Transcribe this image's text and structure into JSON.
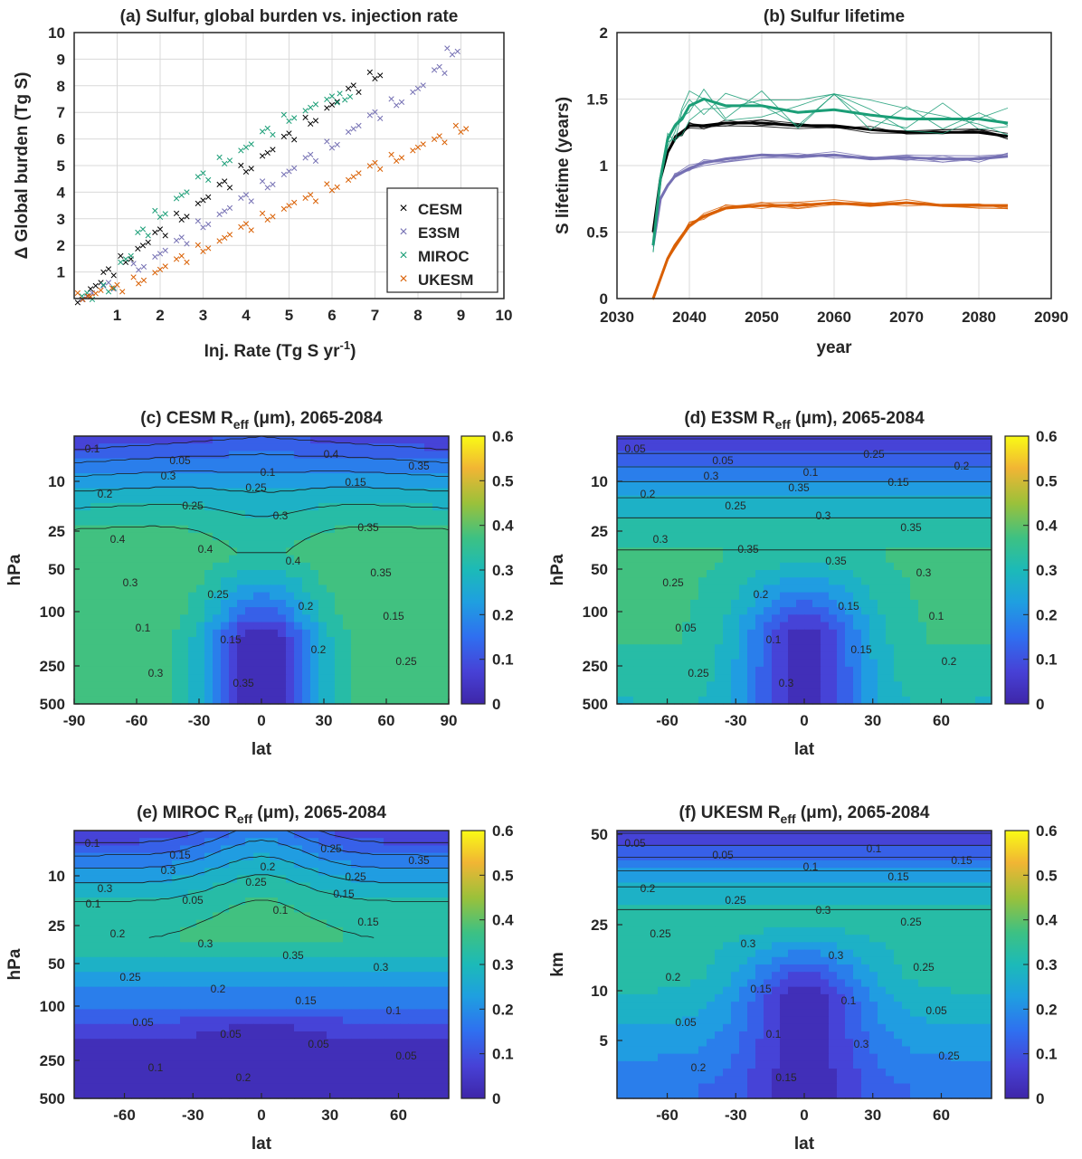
{
  "chart_data": [
    {
      "id": "a",
      "type": "scatter",
      "title": "(a) Sulfur, global burden vs. injection rate",
      "xlabel": "Inj. Rate (Tg S yr",
      "xlabel_sup": "-1",
      "xlabel_end": ")",
      "ylabel": "Δ Global burden (Tg S)",
      "xlim": [
        0,
        10
      ],
      "ylim": [
        0,
        10
      ],
      "xticks": [
        1,
        2,
        3,
        4,
        5,
        6,
        7,
        8,
        9,
        10
      ],
      "yticks": [
        1,
        2,
        3,
        4,
        5,
        6,
        7,
        8,
        9,
        10
      ],
      "grid": true,
      "legend_position": "bottom-right",
      "marker": "×",
      "series": [
        {
          "name": "CESM",
          "color": "#000000",
          "x": [
            0.2,
            0.5,
            0.8,
            1.2,
            1.6,
            2.0,
            2.5,
            3.0,
            3.5,
            4.0,
            4.5,
            5.0,
            5.5,
            6.0,
            6.5,
            7.0
          ],
          "y": [
            0.1,
            0.5,
            1.0,
            1.5,
            2.0,
            2.5,
            3.1,
            3.7,
            4.3,
            4.9,
            5.5,
            6.1,
            6.7,
            7.3,
            7.9,
            8.4
          ]
        },
        {
          "name": "E3SM",
          "color": "#7570b3",
          "x": [
            0.3,
            0.8,
            1.5,
            2.0,
            2.5,
            3.0,
            3.5,
            4.0,
            4.5,
            5.0,
            5.5,
            6.0,
            6.5,
            7.0,
            7.5,
            8.0,
            8.5,
            8.8
          ],
          "y": [
            0.1,
            0.5,
            1.2,
            1.7,
            2.2,
            2.8,
            3.3,
            3.8,
            4.3,
            4.8,
            5.3,
            5.8,
            6.4,
            6.9,
            7.4,
            7.9,
            8.6,
            9.3
          ]
        },
        {
          "name": "MIROC",
          "color": "#1b9e77",
          "x": [
            0.3,
            0.8,
            1.2,
            1.6,
            2.0,
            2.5,
            3.0,
            3.5,
            4.0,
            4.5,
            5.0,
            5.5,
            6.0,
            6.3
          ],
          "y": [
            0.1,
            0.4,
            1.5,
            2.5,
            3.2,
            3.9,
            4.6,
            5.2,
            5.7,
            6.3,
            6.8,
            7.2,
            7.5,
            7.6
          ]
        },
        {
          "name": "UKESM",
          "color": "#d95f02",
          "x": [
            0.2,
            0.5,
            1.0,
            1.5,
            2.0,
            2.5,
            3.0,
            3.5,
            4.0,
            4.5,
            5.0,
            5.5,
            6.0,
            6.5,
            7.0,
            7.5,
            8.0,
            8.5,
            9.0
          ],
          "y": [
            0.1,
            0.2,
            0.4,
            0.7,
            1.1,
            1.5,
            1.9,
            2.3,
            2.7,
            3.1,
            3.5,
            3.8,
            4.2,
            4.6,
            5.0,
            5.3,
            5.7,
            6.0,
            6.4
          ]
        }
      ]
    },
    {
      "id": "b",
      "type": "line",
      "title": "(b) Sulfur lifetime",
      "xlabel": "year",
      "ylabel": "S lifetime (years)",
      "xlim": [
        2030,
        2090
      ],
      "ylim": [
        0,
        2
      ],
      "xticks": [
        2030,
        2040,
        2050,
        2060,
        2070,
        2080,
        2090
      ],
      "yticks": [
        0,
        0.5,
        1,
        1.5,
        2
      ],
      "ytick_labels": [
        "0",
        "0.5",
        "1",
        "1.5",
        "2"
      ],
      "grid": true,
      "series": [
        {
          "color": "#000000",
          "x": [
            2035,
            2036,
            2037,
            2038,
            2039,
            2040,
            2042,
            2045,
            2050,
            2055,
            2060,
            2065,
            2070,
            2075,
            2080,
            2084
          ],
          "y": [
            0.5,
            0.9,
            1.1,
            1.2,
            1.25,
            1.3,
            1.3,
            1.32,
            1.32,
            1.3,
            1.3,
            1.27,
            1.25,
            1.25,
            1.25,
            1.22
          ]
        },
        {
          "color": "#7570b3",
          "x": [
            2035,
            2036,
            2037,
            2038,
            2040,
            2042,
            2045,
            2050,
            2055,
            2060,
            2065,
            2070,
            2075,
            2080,
            2084
          ],
          "y": [
            0.4,
            0.75,
            0.85,
            0.92,
            0.98,
            1.02,
            1.05,
            1.08,
            1.07,
            1.08,
            1.05,
            1.06,
            1.05,
            1.05,
            1.07
          ]
        },
        {
          "color": "#1b9e77",
          "x": [
            2035,
            2036,
            2037,
            2038,
            2039,
            2040,
            2042,
            2045,
            2050,
            2055,
            2060,
            2065,
            2070,
            2075,
            2080,
            2084
          ],
          "y": [
            0.4,
            0.9,
            1.2,
            1.3,
            1.35,
            1.45,
            1.5,
            1.45,
            1.45,
            1.4,
            1.42,
            1.38,
            1.35,
            1.35,
            1.35,
            1.32
          ]
        },
        {
          "color": "#d95f02",
          "x": [
            2035,
            2036,
            2037,
            2038,
            2040,
            2042,
            2045,
            2050,
            2055,
            2060,
            2065,
            2070,
            2075,
            2080,
            2084
          ],
          "y": [
            0.0,
            0.15,
            0.3,
            0.4,
            0.55,
            0.62,
            0.68,
            0.7,
            0.7,
            0.72,
            0.7,
            0.72,
            0.7,
            0.7,
            0.7
          ]
        }
      ]
    },
    {
      "id": "c",
      "type": "heatmap",
      "title": "(c) CESM R",
      "title_sub": "eff",
      "title_end": " (μm), 2065-2084",
      "xlabel": "lat",
      "ylabel": "hPa",
      "xticks": [
        -90,
        -60,
        -30,
        0,
        30,
        60,
        90
      ],
      "yticks": [
        "10",
        "25",
        "50",
        "100",
        "250",
        "500"
      ],
      "colorbar_ticks": [
        "0",
        "0.1",
        "0.2",
        "0.3",
        "0.4",
        "0.5",
        "0.6"
      ],
      "contour_labels": [
        "0.1",
        "0.05",
        "0.1",
        "0.15",
        "0.2",
        "0.25",
        "0.3",
        "0.35",
        "0.4",
        "0.4",
        "0.4",
        "0.35",
        "0.3",
        "0.25",
        "0.2",
        "0.15",
        "0.1",
        "0.15",
        "0.2",
        "0.25",
        "0.3",
        "0.35",
        "0.4",
        "0.35",
        "0.3",
        "0.25"
      ]
    },
    {
      "id": "d",
      "type": "heatmap",
      "title": "(d) E3SM R",
      "title_sub": "eff",
      "title_end": " (μm), 2065-2084",
      "xlabel": "lat",
      "ylabel": "hPa",
      "xticks": [
        -60,
        -30,
        0,
        30,
        60
      ],
      "yticks": [
        "10",
        "25",
        "50",
        "100",
        "250",
        "500"
      ],
      "colorbar_ticks": [
        "0",
        "0.1",
        "0.2",
        "0.3",
        "0.4",
        "0.5",
        "0.6"
      ],
      "contour_labels": [
        "0.05",
        "0.05",
        "0.1",
        "0.15",
        "0.2",
        "0.25",
        "0.3",
        "0.35",
        "0.3",
        "0.35",
        "0.35",
        "0.3",
        "0.25",
        "0.2",
        "0.15",
        "0.1",
        "0.05",
        "0.1",
        "0.15",
        "0.2",
        "0.25",
        "0.3",
        "0.25",
        "0.2",
        "0.3",
        "0.35"
      ]
    },
    {
      "id": "e",
      "type": "heatmap",
      "title": "(e) MIROC R",
      "title_sub": "eff",
      "title_end": " (μm), 2065-2084",
      "xlabel": "lat",
      "ylabel": "hPa",
      "xticks": [
        -60,
        -30,
        0,
        30,
        60
      ],
      "yticks": [
        "10",
        "25",
        "50",
        "100",
        "250",
        "500"
      ],
      "colorbar_ticks": [
        "0",
        "0.1",
        "0.2",
        "0.3",
        "0.4",
        "0.5",
        "0.6"
      ],
      "contour_labels": [
        "0.1",
        "0.15",
        "0.2",
        "0.25",
        "0.3",
        "0.05",
        "0.1",
        "0.15",
        "0.2",
        "0.3",
        "0.35",
        "0.3",
        "0.25",
        "0.2",
        "0.15",
        "0.1",
        "0.05",
        "0.05",
        "0.05",
        "0.05",
        "0.1",
        "0.2",
        "0.25",
        "0.35",
        "0.3",
        "0.25",
        "0.15",
        "0.1"
      ]
    },
    {
      "id": "f",
      "type": "heatmap",
      "title": "(f) UKESM R",
      "title_sub": "eff",
      "title_end": " (μm), 2065-2084",
      "xlabel": "lat",
      "ylabel": "km",
      "xticks": [
        -60,
        -30,
        0,
        30,
        60
      ],
      "yticks": [
        "50",
        "25",
        "10",
        "5"
      ],
      "colorbar_ticks": [
        "0",
        "0.1",
        "0.2",
        "0.3",
        "0.4",
        "0.5",
        "0.6"
      ],
      "contour_labels": [
        "0.05",
        "0.05",
        "0.1",
        "0.15",
        "0.2",
        "0.25",
        "0.3",
        "0.25",
        "0.25",
        "0.3",
        "0.3",
        "0.25",
        "0.2",
        "0.15",
        "0.1",
        "0.05",
        "0.05",
        "0.1",
        "0.3",
        "0.25",
        "0.2",
        "0.15",
        "0.1",
        "0.15"
      ]
    }
  ]
}
